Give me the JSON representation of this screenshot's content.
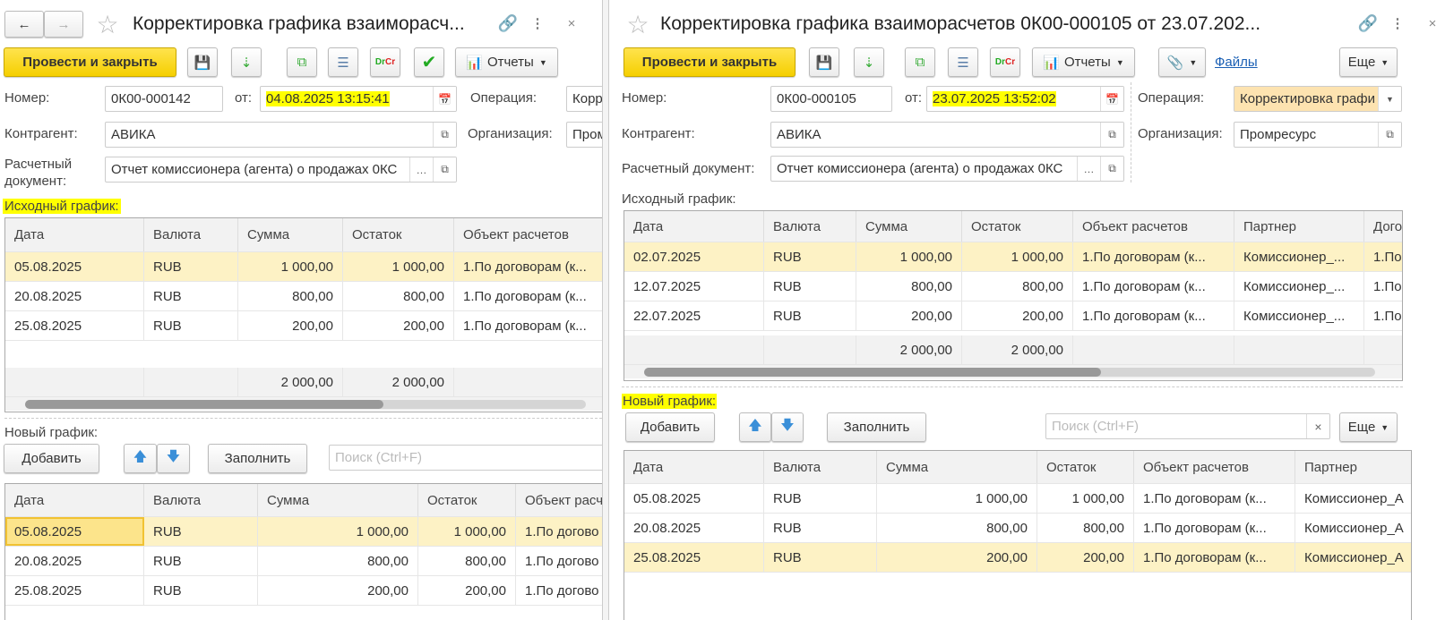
{
  "left": {
    "title": "Корректировка графика взаиморасч...",
    "toolbar": {
      "post_close": "Провести и закрыть",
      "reports": "Отчеты"
    },
    "fields": {
      "number_label": "Номер:",
      "number": "0К00-000142",
      "date_label": "от:",
      "date": "04.08.2025 13:15:41",
      "operation_label": "Операция:",
      "operation": "Корр",
      "counterparty_label": "Контрагент:",
      "counterparty": "АВИКА",
      "organization_label": "Организация:",
      "organization": "Пром",
      "settlement_doc_label_1": "Расчетный",
      "settlement_doc_label_2": "документ:",
      "settlement_doc": "Отчет комиссионера (агента) о продажах 0КС"
    },
    "original_schedule": {
      "label": "Исходный график:",
      "columns": [
        "Дата",
        "Валюта",
        "Сумма",
        "Остаток",
        "Объект расчетов"
      ],
      "rows": [
        [
          "05.08.2025",
          "RUB",
          "1 000,00",
          "1 000,00",
          "1.По договорам (к..."
        ],
        [
          "20.08.2025",
          "RUB",
          "800,00",
          "800,00",
          "1.По договорам (к..."
        ],
        [
          "25.08.2025",
          "RUB",
          "200,00",
          "200,00",
          "1.По договорам (к..."
        ]
      ],
      "totals": [
        "",
        "",
        "2 000,00",
        "2 000,00",
        ""
      ]
    },
    "new_schedule": {
      "label": "Новый график:",
      "add": "Добавить",
      "fill": "Заполнить",
      "search_placeholder": "Поиск (Ctrl+F)",
      "columns": [
        "Дата",
        "Валюта",
        "Сумма",
        "Остаток",
        "Объект расчетов"
      ],
      "rows": [
        [
          "05.08.2025",
          "RUB",
          "1 000,00",
          "1 000,00",
          "1.По догово"
        ],
        [
          "20.08.2025",
          "RUB",
          "800,00",
          "800,00",
          "1.По догово"
        ],
        [
          "25.08.2025",
          "RUB",
          "200,00",
          "200,00",
          "1.По догово"
        ]
      ]
    }
  },
  "right": {
    "title": "Корректировка графика взаиморасчетов 0К00-000105 от 23.07.202...",
    "toolbar": {
      "post_close": "Провести и закрыть",
      "reports": "Отчеты",
      "files": "Файлы",
      "more": "Еще"
    },
    "fields": {
      "number_label": "Номер:",
      "number": "0К00-000105",
      "date_label": "от:",
      "date": "23.07.2025 13:52:02",
      "operation_label": "Операция:",
      "operation": "Корректировка графи",
      "counterparty_label": "Контрагент:",
      "counterparty": "АВИКА",
      "organization_label": "Организация:",
      "organization": "Промресурс",
      "settlement_doc_label": "Расчетный документ:",
      "settlement_doc": "Отчет комиссионера (агента) о продажах 0КС"
    },
    "original_schedule": {
      "label": "Исходный график:",
      "columns": [
        "Дата",
        "Валюта",
        "Сумма",
        "Остаток",
        "Объект расчетов",
        "Партнер",
        "Дого"
      ],
      "rows": [
        [
          "02.07.2025",
          "RUB",
          "1 000,00",
          "1 000,00",
          "1.По договорам (к...",
          "Комиссионер_...",
          "1.По"
        ],
        [
          "12.07.2025",
          "RUB",
          "800,00",
          "800,00",
          "1.По договорам (к...",
          "Комиссионер_...",
          "1.По"
        ],
        [
          "22.07.2025",
          "RUB",
          "200,00",
          "200,00",
          "1.По договорам (к...",
          "Комиссионер_...",
          "1.По"
        ]
      ],
      "totals": [
        "",
        "",
        "2 000,00",
        "2 000,00",
        "",
        "",
        ""
      ]
    },
    "new_schedule": {
      "label": "Новый график:",
      "add": "Добавить",
      "fill": "Заполнить",
      "search_placeholder": "Поиск (Ctrl+F)",
      "more": "Еще",
      "columns": [
        "Дата",
        "Валюта",
        "Сумма",
        "Остаток",
        "Объект расчетов",
        "Партнер"
      ],
      "rows": [
        [
          "05.08.2025",
          "RUB",
          "1 000,00",
          "1 000,00",
          "1.По договорам (к...",
          "Комиссионер_А"
        ],
        [
          "20.08.2025",
          "RUB",
          "800,00",
          "800,00",
          "1.По договорам (к...",
          "Комиссионер_А"
        ],
        [
          "25.08.2025",
          "RUB",
          "200,00",
          "200,00",
          "1.По договорам (к...",
          "Комиссионер_А"
        ]
      ]
    }
  },
  "colors": {
    "accent_yellow": "#f5cf00",
    "highlight": "#ffff00",
    "selected_row": "#fdf2c5",
    "link": "#1a5fb4"
  }
}
